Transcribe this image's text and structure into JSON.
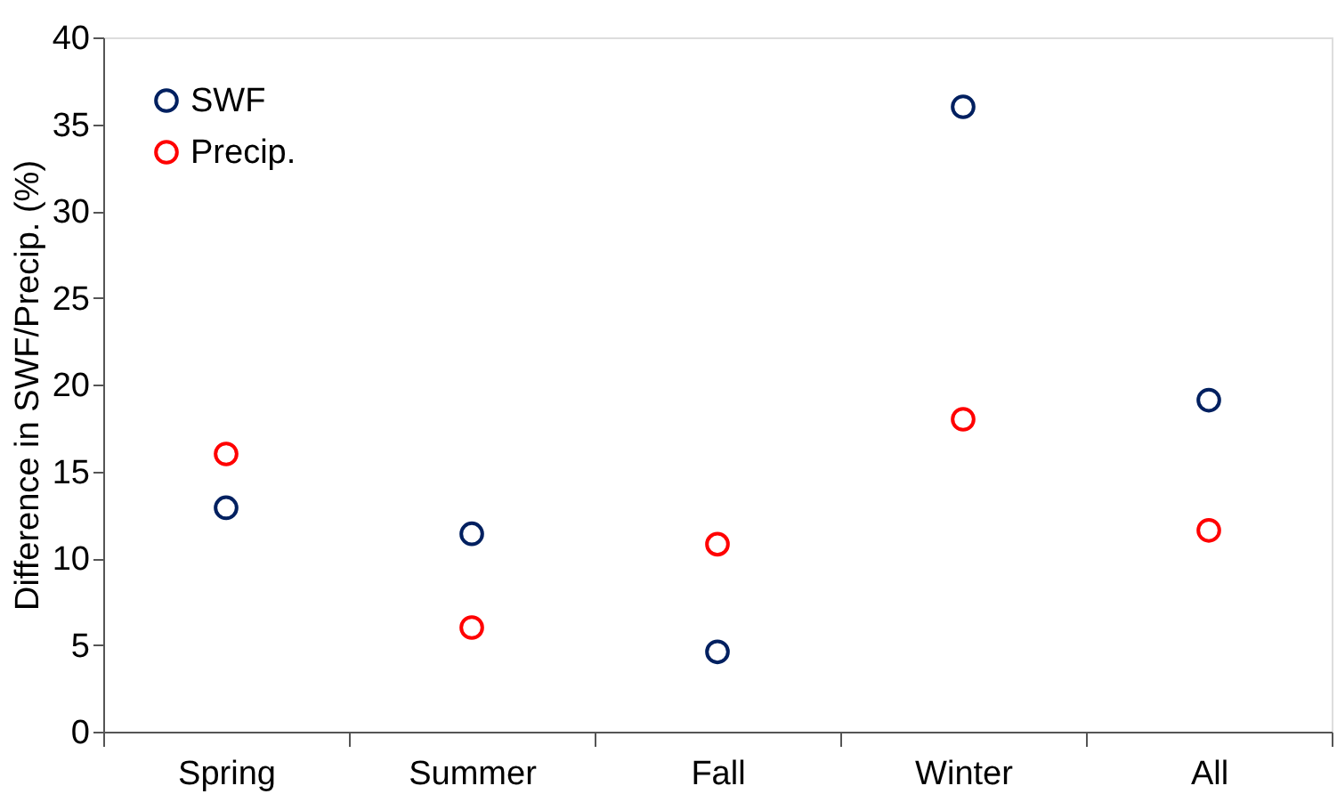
{
  "chart_data": {
    "type": "scatter",
    "ylabel": "Difference in SWF/Precip. (%)",
    "categories": [
      "Spring",
      "Summer",
      "Fall",
      "Winter",
      "All"
    ],
    "series": [
      {
        "name": "SWF",
        "color": "#002060",
        "values": [
          12.9,
          11.4,
          4.6,
          36.0,
          19.1
        ]
      },
      {
        "name": "Precip.",
        "color": "#ff0000",
        "values": [
          16.0,
          6.0,
          10.8,
          18.0,
          11.6
        ]
      }
    ],
    "ylim": [
      0,
      40
    ],
    "yticks": [
      0,
      5,
      10,
      15,
      20,
      25,
      30,
      35,
      40
    ],
    "grid": false,
    "legend": "top left",
    "marker": "circle"
  }
}
